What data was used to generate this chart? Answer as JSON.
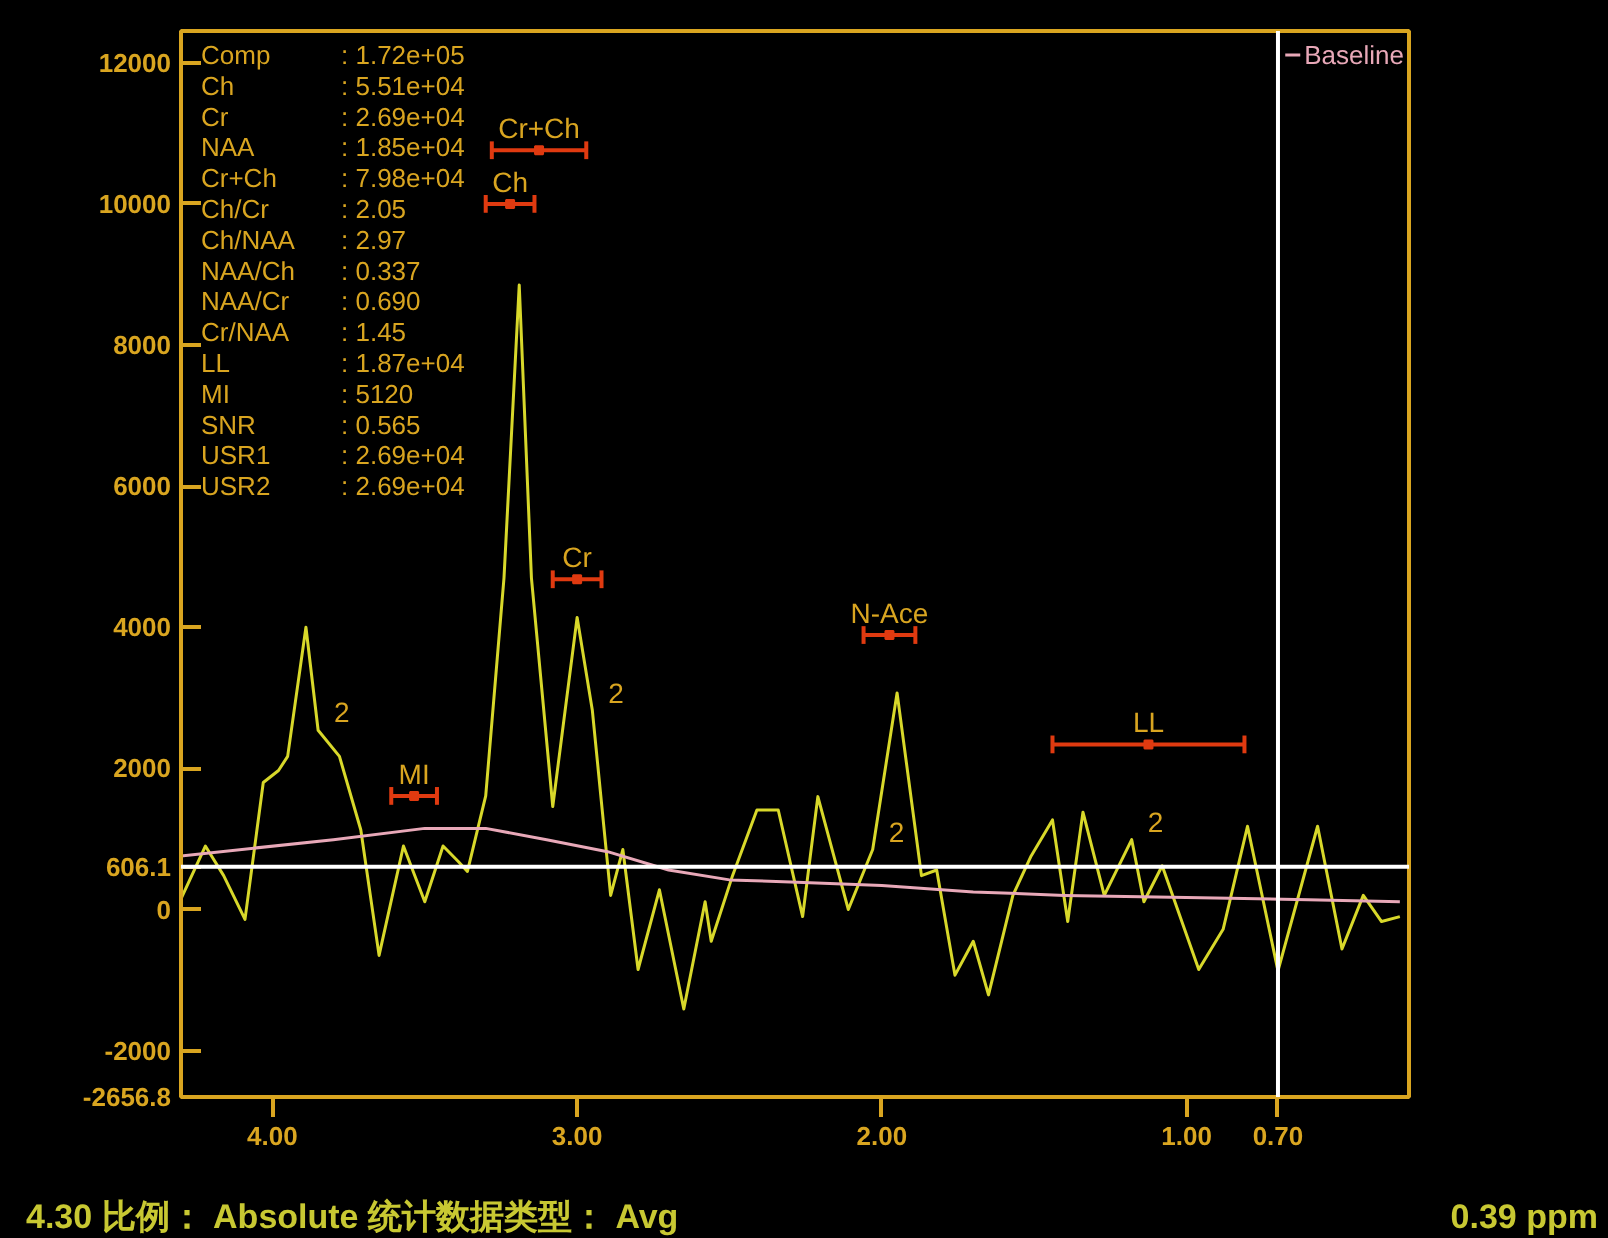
{
  "chart_data": {
    "type": "line",
    "x": [
      4.3,
      4.22,
      4.16,
      4.09,
      4.03,
      3.98,
      3.95,
      3.89,
      3.85,
      3.78,
      3.71,
      3.65,
      3.57,
      3.5,
      3.44,
      3.39,
      3.36,
      3.3,
      3.24,
      3.19,
      3.15,
      3.08,
      3.0,
      2.95,
      2.89,
      2.85,
      2.8,
      2.73,
      2.65,
      2.58,
      2.56,
      2.49,
      2.41,
      2.34,
      2.26,
      2.21,
      2.11,
      2.03,
      1.95,
      1.87,
      1.82,
      1.76,
      1.7,
      1.65,
      1.57,
      1.51,
      1.44,
      1.39,
      1.34,
      1.27,
      1.18,
      1.14,
      1.08,
      0.96,
      0.88,
      0.8,
      0.7,
      0.57,
      0.49,
      0.42,
      0.36,
      0.3
    ],
    "series": [
      {
        "color": "#d8d82a",
        "values": [
          150,
          900,
          480,
          -140,
          1800,
          1970,
          2170,
          4000,
          2540,
          2170,
          1130,
          -650,
          900,
          110,
          900,
          680,
          540,
          1610,
          4700,
          8850,
          4700,
          1460,
          4140,
          2820,
          200,
          850,
          -850,
          280,
          -1410,
          110,
          -450,
          480,
          1410,
          1410,
          -100,
          1600,
          0,
          850,
          3070,
          480,
          560,
          -930,
          -450,
          -1210,
          200,
          760,
          1270,
          -170,
          1380,
          200,
          990,
          110,
          620,
          -850,
          -280,
          1180,
          -870,
          1180,
          -560,
          200,
          -170,
          -100
        ]
      },
      {
        "type": "scatter",
        "marker": "square",
        "color": "#e03a10",
        "x": [
          3.22,
          3.0,
          3.125,
          1.975,
          3.535,
          1.125
        ],
        "values": [
          10000,
          4680,
          10760,
          3890,
          1610,
          2340
        ],
        "xerrors": [
          [
            3.14,
            3.3
          ],
          [
            2.92,
            3.08
          ],
          [
            2.97,
            3.28
          ],
          [
            1.89,
            2.06
          ],
          [
            3.46,
            3.61
          ],
          [
            0.81,
            1.44
          ]
        ],
        "value_labels": [
          "Ch",
          "Cr",
          "Cr+Ch",
          "N-Ace",
          "MI",
          "LL"
        ]
      },
      {
        "name": "Baseline",
        "color": "#e8a8b8",
        "x": [
          4.3,
          3.8,
          3.5,
          3.3,
          3.1,
          2.9,
          2.7,
          2.5,
          2.3,
          2.0,
          1.7,
          1.4,
          1.0,
          0.6,
          0.3
        ],
        "values": [
          760,
          990,
          1150,
          1150,
          990,
          820,
          560,
          420,
          390,
          340,
          250,
          200,
          170,
          140,
          110
        ]
      }
    ],
    "xlim": [
      4.3,
      0.27
    ],
    "ylim": [
      -2656.8,
      12450
    ],
    "xticks": [
      {
        "value": 4,
        "label": "4.00"
      },
      {
        "value": 3,
        "label": "3.00"
      },
      {
        "value": 2,
        "label": "2.00"
      },
      {
        "value": 1,
        "label": "1.00"
      }
    ],
    "yticks": [
      {
        "value": -2656.8,
        "label": "-2656.8"
      },
      -2000,
      0,
      2000,
      4000,
      6000,
      8000,
      10000,
      12000
    ],
    "ref_lines": [
      {
        "axis": "y",
        "value": 606.1,
        "label": "606.1",
        "color": "#ffffff"
      },
      {
        "axis": "x",
        "value": 0.7,
        "label": "0.70",
        "color": "#ffffff"
      }
    ],
    "annotations": [
      {
        "text": "2",
        "x": 3.85,
        "y": 2540
      },
      {
        "text": "2",
        "x": 2.95,
        "y": 2820
      },
      {
        "text": "2",
        "x": 2.03,
        "y": 850
      },
      {
        "text": "2",
        "x": 1.18,
        "y": 990
      },
      "Comp : 1.72e+05",
      "Ch : 5.51e+04",
      "Cr : 2.69e+04",
      "NAA : 1.85e+04",
      "Cr+Ch : 7.98e+04",
      "Ch/Cr : 2.05",
      "Ch/NAA : 2.97",
      "NAA/Ch : 0.337",
      "NAA/Cr : 0.690",
      "Cr/NAA : 1.45",
      "LL : 1.87e+04",
      "MI : 5120",
      "SNR : 0.565",
      "USR1 : 2.69e+04",
      "USR2 : 2.69e+04",
      "4.30 比例： Absolute 统计数据类型： Avg",
      "0.39 ppm"
    ],
    "legend": "top right"
  }
}
